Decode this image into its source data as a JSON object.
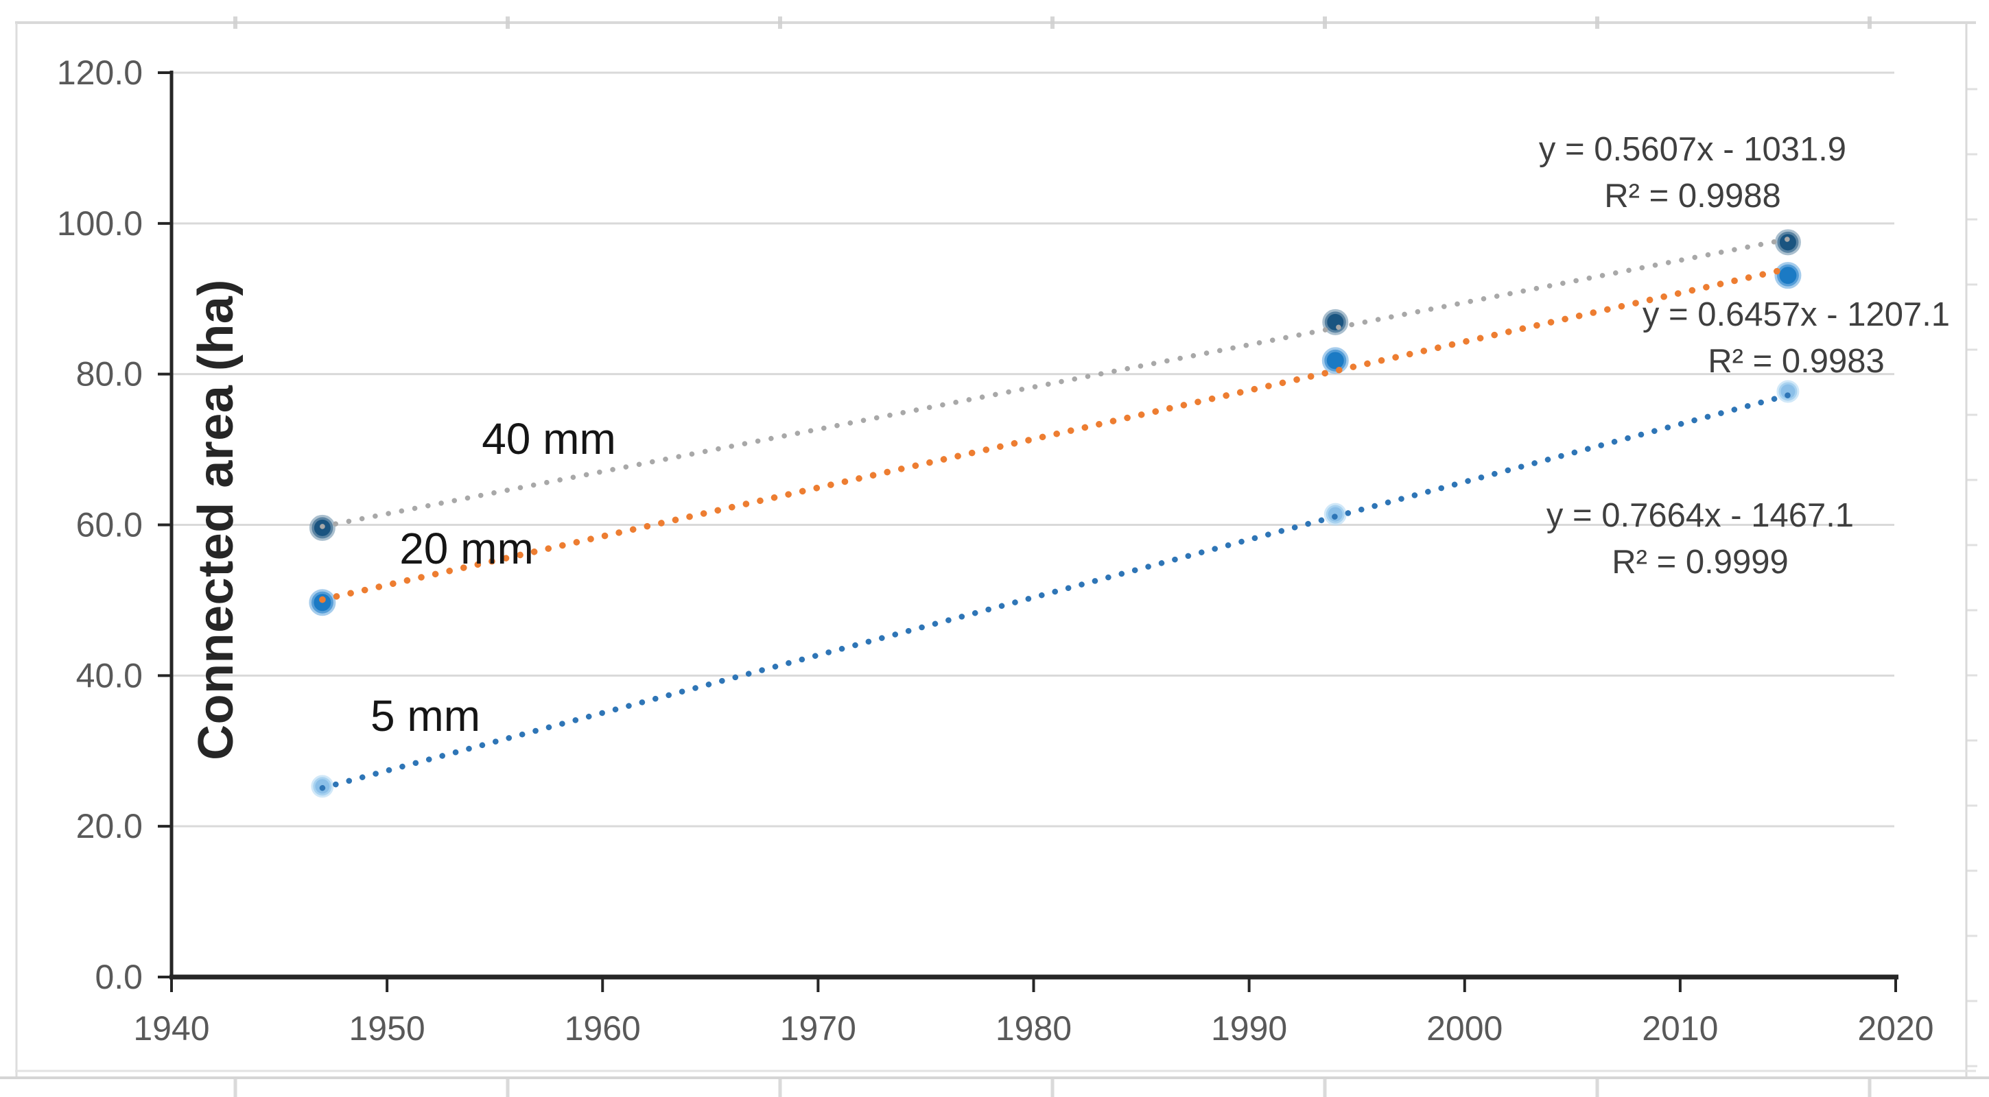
{
  "chart_data": {
    "type": "scatter",
    "title": "",
    "xlabel": "",
    "ylabel": "Connected area (ha)",
    "xlim": [
      1940,
      2020
    ],
    "ylim": [
      0,
      120
    ],
    "x_tick_labels": [
      "1940",
      "1950",
      "1960",
      "1970",
      "1980",
      "1990",
      "2000",
      "2010",
      "2020"
    ],
    "y_tick_labels": [
      "0.0",
      "20.0",
      "40.0",
      "60.0",
      "80.0",
      "100.0",
      "120.0"
    ],
    "grid": "horizontal-only",
    "legend_position": "none-inline-labels",
    "colors": {
      "axis": "#262626",
      "tick_label": "#595959",
      "gridline": "#d9d9d9",
      "equation_text": "#3f3f3f",
      "chart_border": "#d9d9d9"
    },
    "series": [
      {
        "name": "5 mm",
        "x": [
          1947,
          1994,
          2015
        ],
        "y": [
          25.3,
          61.4,
          77.7
        ],
        "marker_color": "#8bbfe8",
        "marker_halo": "#b9dcf4",
        "trend_color": "#2e75b6",
        "trend_slope": 0.7664,
        "trend_intercept": -1467.1,
        "trend_x_range": [
          1947,
          2015
        ],
        "equation": "y = 0.7664x - 1467.1",
        "r_squared": "R² = 0.9999"
      },
      {
        "name": "20 mm",
        "x": [
          1947,
          1994,
          2015
        ],
        "y": [
          49.7,
          81.8,
          93.1
        ],
        "marker_color": "#1b7ac4",
        "marker_halo": "#74b1e2",
        "trend_color": "#ed7d31",
        "trend_slope": 0.6457,
        "trend_intercept": -1207.1,
        "trend_x_range": [
          1947,
          2015
        ],
        "equation": "y = 0.6457x - 1207.1",
        "r_squared": "R² = 0.9983"
      },
      {
        "name": "40 mm",
        "x": [
          1947,
          1994,
          2015
        ],
        "y": [
          59.6,
          86.9,
          97.5
        ],
        "marker_color": "#1a5480",
        "marker_halo": "#7d9cb4",
        "trend_color": "#a8a8a8",
        "trend_slope": 0.5607,
        "trend_intercept": -1031.9,
        "trend_x_range": [
          1947,
          2015
        ],
        "equation": "y = 0.5607x - 1031.9",
        "r_squared": "R² = 0.9988"
      }
    ]
  }
}
